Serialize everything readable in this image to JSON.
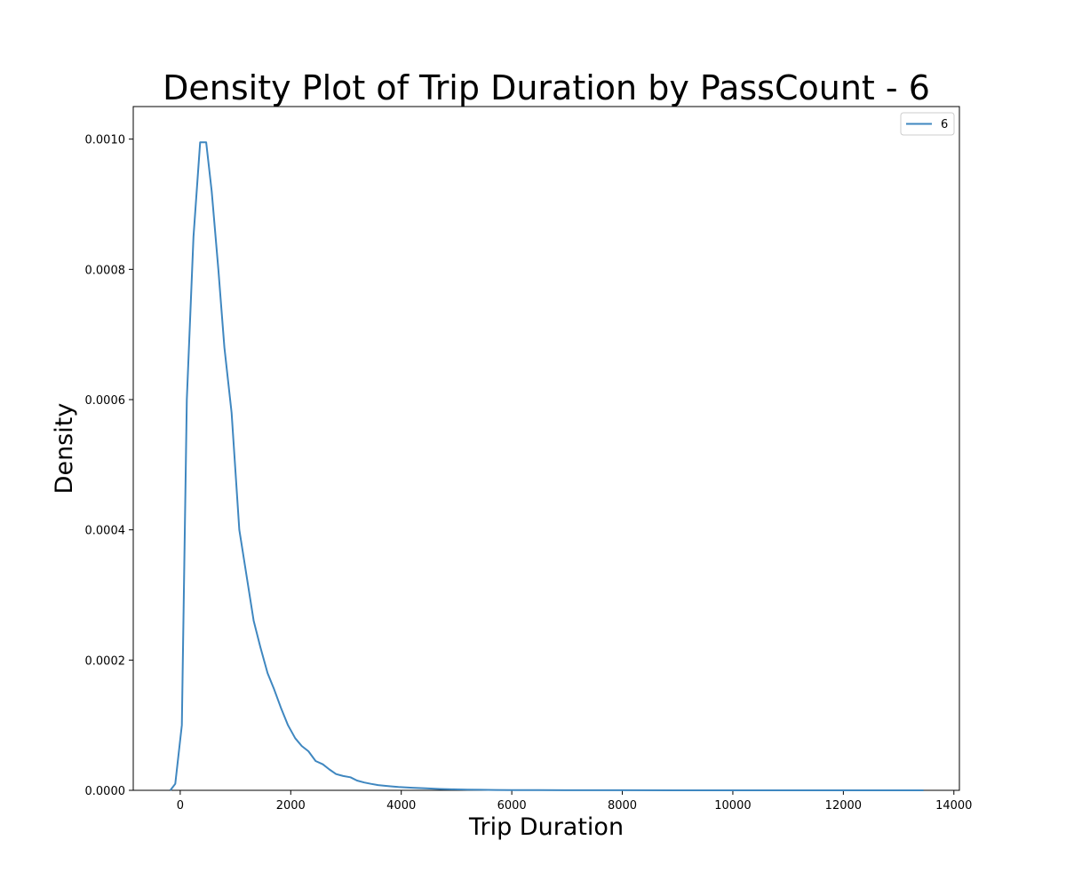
{
  "chart_data": {
    "type": "line",
    "title": "Density Plot of Trip Duration by PassCount - 6",
    "xlabel": "Trip Duration",
    "ylabel": "Density",
    "xlim": [
      -850,
      14100
    ],
    "ylim": [
      0,
      0.00105
    ],
    "x_ticks": [
      0,
      2000,
      4000,
      6000,
      8000,
      10000,
      12000,
      14000
    ],
    "x_tick_labels": [
      "0",
      "2000",
      "4000",
      "6000",
      "8000",
      "10000",
      "12000",
      "14000"
    ],
    "y_ticks": [
      0,
      0.0002,
      0.0004,
      0.0006,
      0.0008,
      0.001
    ],
    "y_tick_labels": [
      "0.0000",
      "0.0002",
      "0.0004",
      "0.0006",
      "0.0008",
      "0.0010"
    ],
    "grid": false,
    "legend": {
      "placement": "top-right",
      "entries": [
        "6"
      ]
    },
    "series": [
      {
        "name": "6",
        "color": "#3f87c0",
        "x": [
          -180,
          -90,
          30,
          120,
          240,
          360,
          470,
          570,
          690,
          800,
          930,
          1070,
          1200,
          1330,
          1450,
          1580,
          1700,
          1830,
          1950,
          2080,
          2200,
          2320,
          2450,
          2580,
          2700,
          2820,
          2950,
          3080,
          3200,
          3330,
          3450,
          3580,
          3700,
          3830,
          3950,
          4200,
          4450,
          4700,
          4950,
          5200,
          5450,
          5700,
          6000,
          6500,
          7000,
          8000,
          9000,
          10000,
          11000,
          12000,
          13000,
          13450
        ],
        "y": [
          0,
          1e-05,
          0.0001,
          0.0006,
          0.00085,
          0.000995,
          0.000995,
          0.00092,
          0.0008,
          0.00068,
          0.00058,
          0.0004,
          0.00033,
          0.00026,
          0.00022,
          0.00018,
          0.000155,
          0.000125,
          0.0001,
          8e-05,
          6.8e-05,
          6e-05,
          4.5e-05,
          4e-05,
          3.2e-05,
          2.5e-05,
          2.2e-05,
          2e-05,
          1.5e-05,
          1.2e-05,
          1e-05,
          8e-06,
          7e-06,
          6e-06,
          5e-06,
          4e-06,
          3e-06,
          2e-06,
          1.5e-06,
          1e-06,
          8e-07,
          6e-07,
          4e-07,
          3e-07,
          2e-07,
          1e-07,
          5e-08,
          3e-08,
          2e-08,
          1e-08,
          0.0,
          0.0
        ]
      }
    ]
  }
}
